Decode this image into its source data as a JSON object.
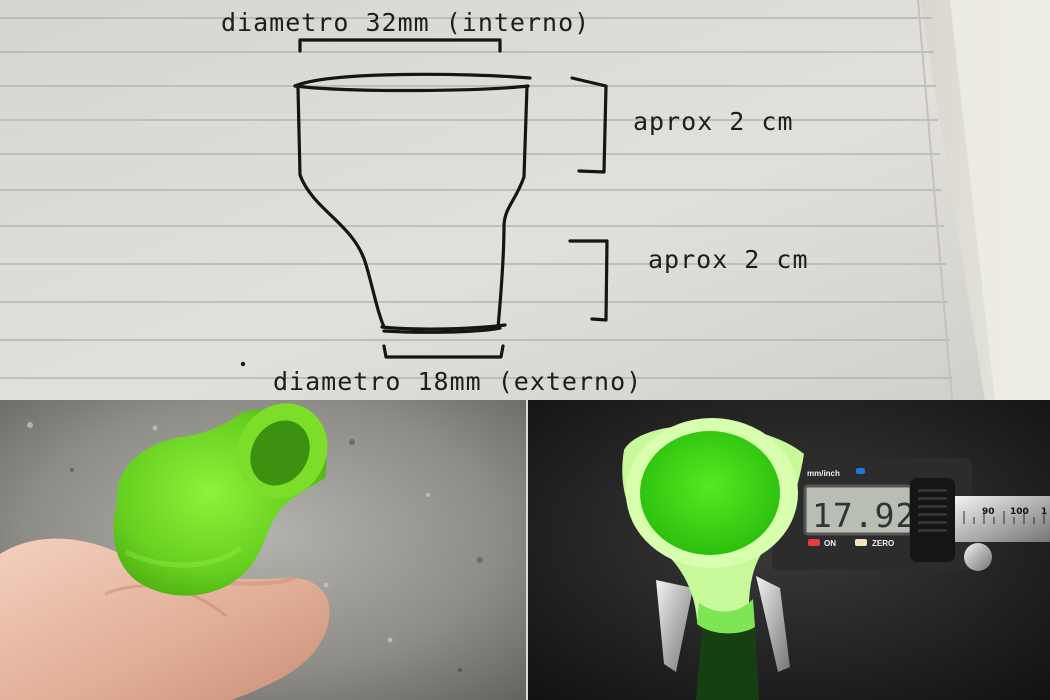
{
  "sketch": {
    "top_label": "diametro 32mm (interno)",
    "upper_height_label": "aprox 2 cm",
    "lower_height_label": "aprox 2 cm",
    "bottom_label": "diametro 18mm (externo)"
  },
  "caliper": {
    "unit_label": "mm/inch",
    "reading": "17.92",
    "on_label": "ON",
    "zero_label": "ZERO",
    "scale_ticks": [
      "90",
      "100",
      "1"
    ]
  },
  "colors": {
    "paper": "#dcdad4",
    "ink": "#1d1d1d",
    "part_green": "#7be32f",
    "skin": "#e6b8a2"
  }
}
